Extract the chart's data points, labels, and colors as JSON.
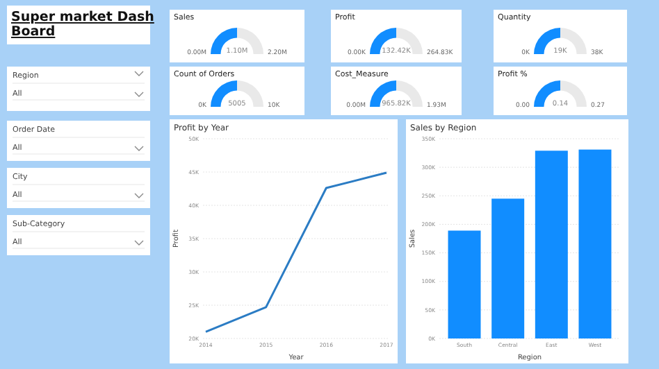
{
  "chart_data": [
    {
      "type": "other",
      "title": "Super market Dash Board",
      "annotations": [
        "Region",
        "All",
        "Order Date",
        "All",
        "City",
        "All",
        "Sub-Category",
        "All"
      ]
    },
    {
      "type": "donut",
      "title": "Sales",
      "categories": [
        null,
        null
      ],
      "values": [
        50,
        50
      ],
      "colors": [
        "#118dff",
        "#e9e9e9"
      ],
      "annotations": [
        "0.00M",
        "1.10M",
        "2.20M"
      ]
    },
    {
      "type": "donut",
      "title": "Profit",
      "categories": [
        null,
        null
      ],
      "values": [
        50,
        50
      ],
      "colors": [
        "#118dff",
        "#e9e9e9"
      ],
      "annotations": [
        "0.00K",
        "132.42K",
        "264.83K"
      ]
    },
    {
      "type": "donut",
      "title": "Quantity",
      "categories": [
        null,
        null
      ],
      "values": [
        50,
        50
      ],
      "colors": [
        "#118dff",
        "#e9e9e9"
      ],
      "annotations": [
        "0K",
        "19K",
        "38K"
      ]
    },
    {
      "type": "donut",
      "title": "Count of Orders",
      "categories": [
        null,
        null
      ],
      "values": [
        50,
        50
      ],
      "colors": [
        "#118dff",
        "#e9e9e9"
      ],
      "annotations": [
        "0K",
        "5005",
        "10K"
      ]
    },
    {
      "type": "donut",
      "title": "Cost_Measure",
      "categories": [
        null,
        null
      ],
      "values": [
        50,
        50
      ],
      "colors": [
        "#118dff",
        "#e9e9e9"
      ],
      "annotations": [
        "0.00M",
        "965.82K",
        "1.93M"
      ]
    },
    {
      "type": "donut",
      "title": "Profit %",
      "categories": [
        null,
        null
      ],
      "values": [
        50,
        50
      ],
      "colors": [
        "#118dff",
        "#e9e9e9"
      ],
      "annotations": [
        "0.00",
        "0.14",
        "0.27"
      ]
    },
    {
      "type": "line",
      "title": "Profit by Year",
      "xlabel": "Year",
      "ylabel": "Profit",
      "categories": [
        "2014",
        "2015",
        "2016",
        "2017"
      ],
      "series": [
        {
          "color": "#2b7cc4",
          "values": [
            21000,
            24700,
            42600,
            44900
          ]
        }
      ],
      "ylim": [
        20000,
        50000
      ],
      "yticks": [
        {
          "value": 20000,
          "label": "20K"
        },
        {
          "value": 25000,
          "label": "25K"
        },
        {
          "value": 30000,
          "label": "30K"
        },
        {
          "value": 35000,
          "label": "35K"
        },
        {
          "value": 40000,
          "label": "40K"
        },
        {
          "value": 45000,
          "label": "45K"
        },
        {
          "value": 50000,
          "label": "50K"
        }
      ],
      "grid": "y",
      "marker": "none",
      "line_style": "solid"
    },
    {
      "type": "bar",
      "title": "Sales by Region",
      "xlabel": "Region",
      "ylabel": "Sales",
      "categories": [
        "South",
        "Central",
        "East",
        "West"
      ],
      "values": [
        189000,
        245000,
        329000,
        331000
      ],
      "color": "#118dff",
      "ylim": [
        0,
        350000
      ],
      "yticks": [
        {
          "value": 0,
          "label": "0K"
        },
        {
          "value": 50000,
          "label": "50K"
        },
        {
          "value": 100000,
          "label": "100K"
        },
        {
          "value": 150000,
          "label": "150K"
        },
        {
          "value": 200000,
          "label": "200K"
        },
        {
          "value": 250000,
          "label": "250K"
        },
        {
          "value": 300000,
          "label": "300K"
        },
        {
          "value": 350000,
          "label": "350K"
        }
      ],
      "grid": "y"
    }
  ]
}
